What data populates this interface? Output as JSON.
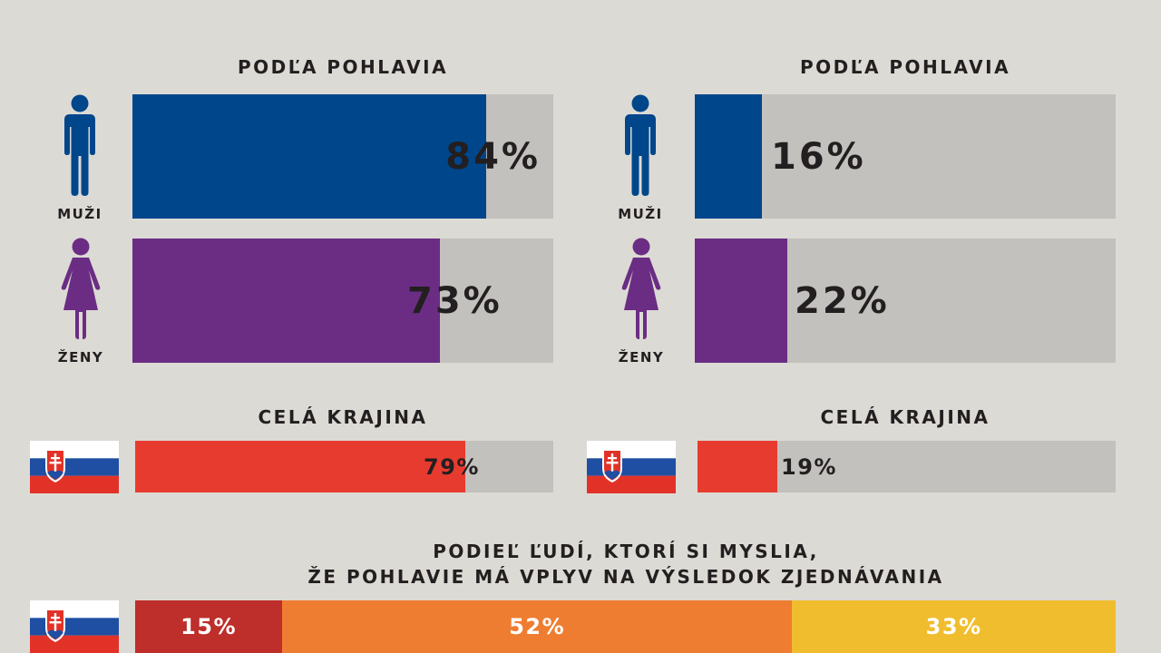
{
  "colors": {
    "male": "#00468b",
    "female": "#6b2d84",
    "country": "#e83b30",
    "track": "#c3c1bd",
    "background": "#dcdad4",
    "text": "#231f20",
    "stack": [
      "#be2e2a",
      "#ef7d31",
      "#f0bd2f"
    ]
  },
  "icons": {
    "male": "male-person-icon",
    "female": "female-person-icon",
    "flag": "slovakia-flag-icon"
  },
  "left": {
    "heading_gender": "PODĽA POHLAVIA",
    "male": {
      "label": "MUŽI",
      "value": 84,
      "text": "84%"
    },
    "female": {
      "label": "ŽENY",
      "value": 73,
      "text": "73%"
    },
    "heading_country": "CELÁ KRAJINA",
    "country": {
      "value": 79,
      "text": "79%"
    }
  },
  "right": {
    "heading_gender": "PODĽA POHLAVIA",
    "male": {
      "label": "MUŽI",
      "value": 16,
      "text": "16%"
    },
    "female": {
      "label": "ŽENY",
      "value": 22,
      "text": "22%"
    },
    "heading_country": "CELÁ KRAJINA",
    "country": {
      "value": 19,
      "text": "19%"
    }
  },
  "bottom": {
    "title_line1": "PODIEĽ ĽUDÍ, KTORÍ SI MYSLIA,",
    "title_line2": "ŽE POHLAVIE MÁ VPLYV NA VÝSLEDOK ZJEDNÁVANIA",
    "segments": [
      {
        "value": 15,
        "text": "15%"
      },
      {
        "value": 52,
        "text": "52%"
      },
      {
        "value": 33,
        "text": "33%"
      }
    ]
  },
  "chart_data": [
    {
      "type": "bar",
      "title": "PODĽA POHLAVIA",
      "categories": [
        "MUŽI",
        "ŽENY"
      ],
      "values": [
        84,
        73
      ],
      "ylim": [
        0,
        100
      ]
    },
    {
      "type": "bar",
      "title": "CELÁ KRAJINA",
      "categories": [
        ""
      ],
      "values": [
        79
      ],
      "ylim": [
        0,
        100
      ]
    },
    {
      "type": "bar",
      "title": "PODĽA POHLAVIA",
      "categories": [
        "MUŽI",
        "ŽENY"
      ],
      "values": [
        16,
        22
      ],
      "ylim": [
        0,
        100
      ]
    },
    {
      "type": "bar",
      "title": "CELÁ KRAJINA",
      "categories": [
        ""
      ],
      "values": [
        19
      ],
      "ylim": [
        0,
        100
      ]
    },
    {
      "type": "bar",
      "title": "PODIEĽ ĽUDÍ, KTORÍ SI MYSLIA, ŽE POHLAVIE MÁ VPLYV NA VÝSLEDOK ZJEDNÁVANIA",
      "categories": [
        ""
      ],
      "series": [
        {
          "values": [
            15
          ]
        },
        {
          "values": [
            52
          ]
        },
        {
          "values": [
            33
          ]
        }
      ],
      "ylim": [
        0,
        100
      ]
    }
  ]
}
